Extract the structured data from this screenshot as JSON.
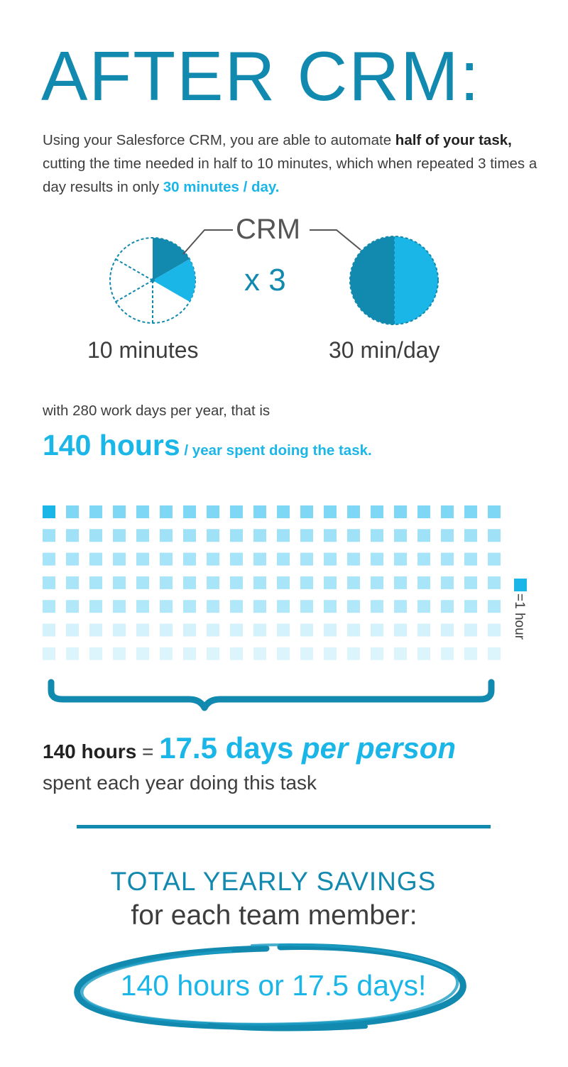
{
  "title": "AFTER CRM:",
  "intro": {
    "part1": "Using your Salesforce CRM, you are able to automate ",
    "bold1": "half of your task,",
    "part2": " cutting the time needed in half to 10 minutes, which when repeated 3 times a day results in only ",
    "highlight": "30 minutes / day."
  },
  "crm_label": "CRM",
  "multiplier": "x 3",
  "left_caption": "10 minutes",
  "right_caption": "30 min/day",
  "work_days": "with 280 work days per year, that is",
  "hours_big": "140 hours",
  "hours_suffix": " / year spent doing the task.",
  "legend": "=1 hour",
  "grid": {
    "rows": 7,
    "cols": 20,
    "total_hours": 140
  },
  "equation": {
    "hours": "140 hours",
    "equals": " = ",
    "days": "17.5 days ",
    "per": "per person"
  },
  "spent_text": "spent each year doing this task",
  "savings_head": "TOTAL YEARLY SAVINGS",
  "savings_sub": "for each team member:",
  "final_text": "140 hours or 17.5 days!",
  "colors": {
    "dark_blue": "#1289ae",
    "light_blue": "#1bb6e8",
    "text": "#3d3d3d",
    "row_shades": [
      "#7dd7f5",
      "#9fe2f8",
      "#a6e4f9",
      "#a8e5f9",
      "#b0e8fa",
      "#d4f2fc",
      "#dcf5fd"
    ]
  }
}
